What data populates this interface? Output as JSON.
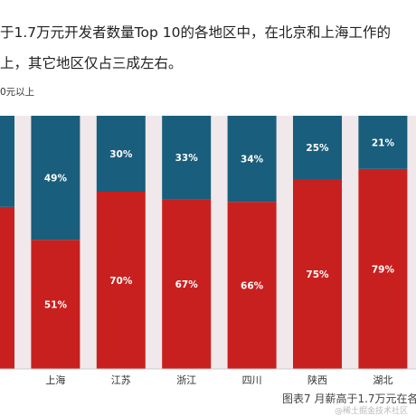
{
  "paragraph": {
    "line1": "于1.7万元开发者数量Top 10的各地区中，在北京和上海工作的",
    "line2": "上，其它地区仅占三成左右。"
  },
  "unit_note": "0元以上",
  "colors": {
    "lower": "#c8201f",
    "upper": "#195e7c",
    "gap": "#f0e8ea"
  },
  "chart_data": {
    "type": "bar",
    "stacked": true,
    "categories": [
      "",
      "上海",
      "江苏",
      "浙江",
      "四川",
      "陕西",
      "湖北",
      ""
    ],
    "series": [
      {
        "values": [
          null,
          51,
          70,
          67,
          66,
          75,
          79,
          null
        ]
      },
      {
        "values": [
          null,
          49,
          30,
          33,
          34,
          25,
          21,
          null
        ]
      }
    ],
    "ylim": [
      0,
      100
    ],
    "bar_labels": {
      "lower": [
        "",
        "51%",
        "70%",
        "67%",
        "66%",
        "75%",
        "79%",
        ""
      ],
      "upper": [
        "",
        "49%",
        "30%",
        "33%",
        "34%",
        "25%",
        "21%",
        ""
      ]
    }
  },
  "caption": "图表7 月薪高于1.7万元在各",
  "watermark": "@稀土掘金技术社区"
}
